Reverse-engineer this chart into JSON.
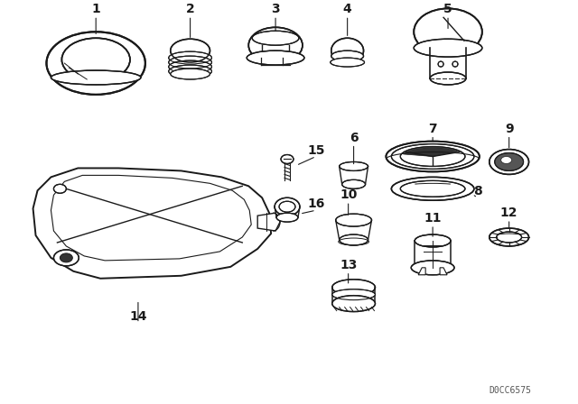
{
  "bg_color": "#ffffff",
  "line_color": "#1a1a1a",
  "fig_width": 6.4,
  "fig_height": 4.48,
  "dpi": 100,
  "watermark": "D0CC6575"
}
